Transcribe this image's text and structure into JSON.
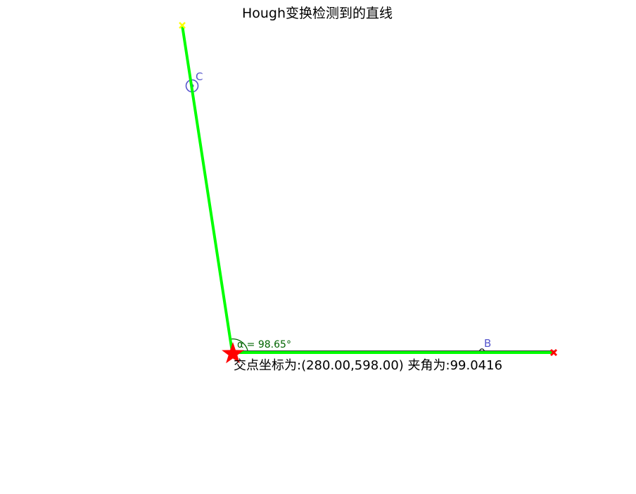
{
  "title": "Hough变换检测到的直线",
  "intersection_info": "交点坐标为:(280.00,598.00) 夹角为:99.0416",
  "angle_annotation": "α = 98.65°",
  "point_labels": {
    "B": "B",
    "C": "C"
  },
  "colors": {
    "detected_line": "#00ff00",
    "sketch_line": "#000000",
    "start_marker": "#ffff00",
    "end_marker": "#ff0000",
    "intersection_star": "#ff0000",
    "point_label": "#5555cc",
    "angle_annotation": "#006400"
  },
  "icons": {
    "intersection": "red-star-marker",
    "line_start": "yellow-x-marker",
    "line_end": "red-x-marker"
  }
}
